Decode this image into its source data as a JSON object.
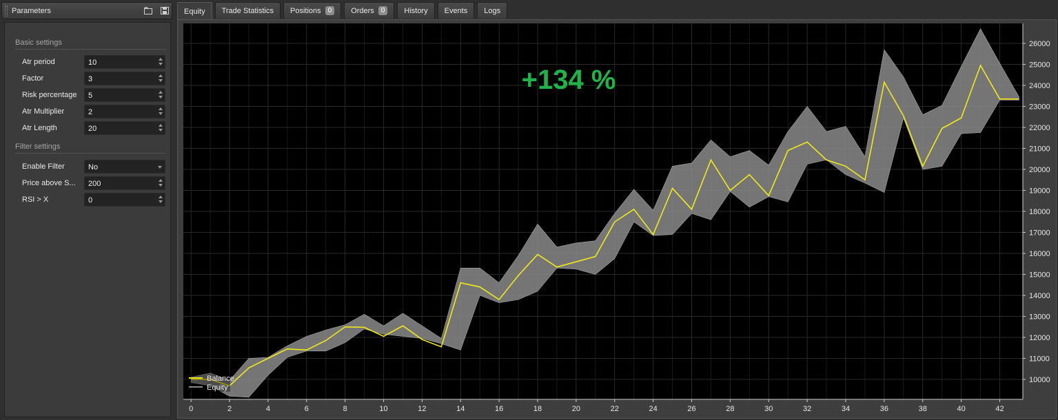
{
  "params": {
    "title": "Parameters",
    "sections": [
      {
        "label": "Basic settings",
        "items": [
          {
            "label": "Atr period",
            "value": "10",
            "control": "spin"
          },
          {
            "label": "Factor",
            "value": "3",
            "control": "spin"
          },
          {
            "label": "Risk percentage",
            "value": "5",
            "control": "spin"
          },
          {
            "label": "Atr Multiplier",
            "value": "2",
            "control": "spin"
          },
          {
            "label": "Atr Length",
            "value": "20",
            "control": "spin"
          }
        ]
      },
      {
        "label": "Filter settings",
        "items": [
          {
            "label": "Enable Filter",
            "value": "No",
            "control": "dropdown"
          },
          {
            "label": "Price above S...",
            "value": "200",
            "control": "spin"
          },
          {
            "label": "RSI > X",
            "value": "0",
            "control": "spin"
          }
        ]
      }
    ]
  },
  "tabs": [
    {
      "label": "Equity",
      "active": true
    },
    {
      "label": "Trade Statistics"
    },
    {
      "label": "Positions",
      "badge": "0"
    },
    {
      "label": "Orders",
      "badge": "0"
    },
    {
      "label": "History"
    },
    {
      "label": "Events"
    },
    {
      "label": "Logs"
    }
  ],
  "chart": {
    "overlay_text": "+134 %",
    "colors": {
      "background": "#000000",
      "grid": "#2a2a2a",
      "balance": "#f0ea1a",
      "equity_band": "#8a8a8a",
      "overlay": "#20b34a",
      "axis_text": "#e8e8e8"
    }
  },
  "chart_data": {
    "type": "line",
    "x_ticks": [
      0,
      2,
      4,
      6,
      8,
      10,
      12,
      14,
      16,
      18,
      20,
      22,
      24,
      26,
      28,
      30,
      32,
      34,
      36,
      38,
      40,
      42
    ],
    "y_ticks": [
      10000,
      11000,
      12000,
      13000,
      14000,
      15000,
      16000,
      17000,
      18000,
      19000,
      20000,
      21000,
      22000,
      23000,
      24000,
      25000,
      26000
    ],
    "xlim": [
      -0.4,
      43.2
    ],
    "ylim": [
      9050,
      26950
    ],
    "legend": {
      "position": "bottom-left",
      "entries": [
        "Balance",
        "Equity"
      ]
    },
    "series": [
      {
        "name": "Balance",
        "x": [
          0,
          1,
          2,
          3,
          4,
          5,
          6,
          7,
          8,
          9,
          10,
          11,
          12,
          13,
          14,
          15,
          16,
          17,
          18,
          19,
          20,
          21,
          22,
          23,
          24,
          25,
          26,
          27,
          28,
          29,
          30,
          31,
          32,
          33,
          34,
          35,
          36,
          37,
          38,
          39,
          40,
          41,
          42,
          43
        ],
        "values": [
          10000,
          10000,
          9700,
          10550,
          11000,
          11450,
          11400,
          11850,
          12500,
          12480,
          12050,
          12550,
          11900,
          11550,
          14600,
          14400,
          13800,
          14950,
          15950,
          15350,
          15600,
          15850,
          17500,
          18100,
          16900,
          19100,
          18100,
          20450,
          19000,
          19750,
          18750,
          20900,
          21300,
          20450,
          20150,
          19500,
          24150,
          22550,
          20150,
          21950,
          22450,
          24950,
          23350,
          23350
        ]
      },
      {
        "name": "Equity",
        "x": [
          0,
          1,
          2,
          3,
          4,
          5,
          6,
          7,
          8,
          9,
          10,
          11,
          12,
          13,
          14,
          15,
          16,
          17,
          18,
          19,
          20,
          21,
          22,
          23,
          24,
          25,
          26,
          27,
          28,
          29,
          30,
          31,
          32,
          33,
          34,
          35,
          36,
          37,
          38,
          39,
          40,
          41,
          42,
          43
        ],
        "high": [
          10100,
          10300,
          9950,
          11000,
          11050,
          11600,
          12050,
          12350,
          12600,
          13100,
          12550,
          13150,
          12550,
          11950,
          15300,
          15300,
          14600,
          15900,
          17400,
          16300,
          16500,
          16600,
          17900,
          19050,
          18050,
          20150,
          20300,
          21400,
          20600,
          20900,
          20200,
          21800,
          23000,
          21800,
          22050,
          20600,
          25700,
          24400,
          22600,
          23050,
          24900,
          26700,
          25050,
          23450
        ],
        "low": [
          9850,
          9700,
          9200,
          9150,
          10200,
          11050,
          11350,
          11350,
          11750,
          12400,
          12150,
          12050,
          11950,
          11700,
          11400,
          14000,
          13650,
          13800,
          14200,
          15300,
          15250,
          15000,
          15750,
          17500,
          16850,
          16900,
          17900,
          17600,
          18950,
          18200,
          18700,
          18450,
          20250,
          20450,
          19750,
          19350,
          18900,
          22450,
          20000,
          20150,
          21700,
          21750,
          23300,
          23300
        ]
      }
    ]
  }
}
